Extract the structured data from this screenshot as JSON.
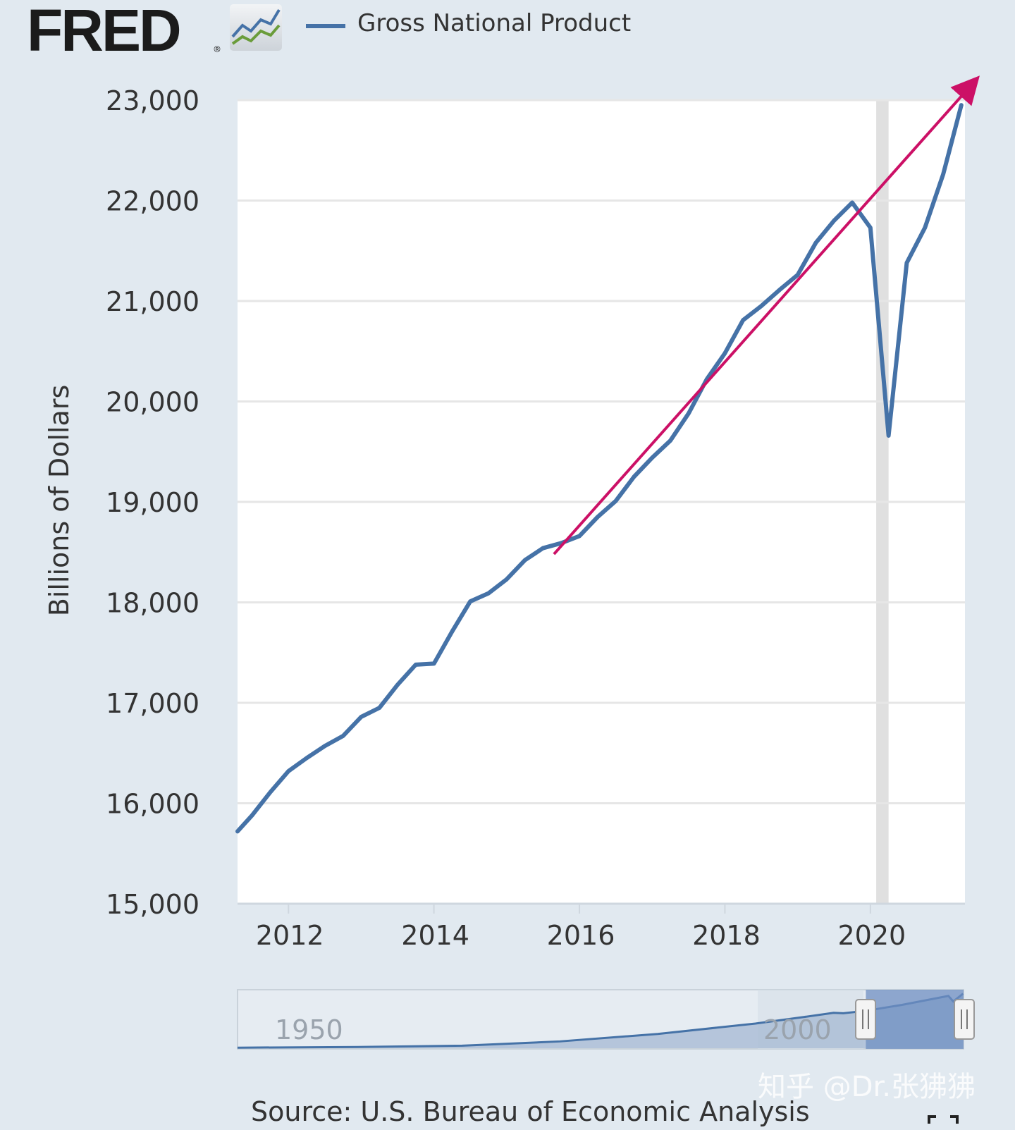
{
  "brand": {
    "name": "FRED",
    "registered": "®"
  },
  "legend": {
    "series_name": "Gross National Product",
    "series_color": "#4572a7"
  },
  "chart_data": {
    "type": "line",
    "title": "Gross National Product",
    "ylabel": "Billions of Dollars",
    "xlabel": "",
    "xlim": [
      2011.3,
      2021.3
    ],
    "ylim": [
      15000,
      23000
    ],
    "y_ticks": [
      15000,
      16000,
      17000,
      18000,
      19000,
      20000,
      21000,
      22000,
      23000
    ],
    "y_tick_labels": [
      "15,000",
      "16,000",
      "17,000",
      "18,000",
      "19,000",
      "20,000",
      "21,000",
      "22,000",
      "23,000"
    ],
    "x_ticks": [
      2012,
      2014,
      2016,
      2018,
      2020
    ],
    "x_tick_labels": [
      "2012",
      "2014",
      "2016",
      "2018",
      "2020"
    ],
    "grid": true,
    "series": [
      {
        "name": "Gross National Product",
        "color": "#4572a7",
        "x": [
          2011.25,
          2011.5,
          2011.75,
          2012.0,
          2012.25,
          2012.5,
          2012.75,
          2013.0,
          2013.25,
          2013.5,
          2013.75,
          2014.0,
          2014.25,
          2014.5,
          2014.75,
          2015.0,
          2015.25,
          2015.5,
          2015.75,
          2016.0,
          2016.25,
          2016.5,
          2016.75,
          2017.0,
          2017.25,
          2017.5,
          2017.75,
          2018.0,
          2018.25,
          2018.5,
          2018.75,
          2019.0,
          2019.25,
          2019.5,
          2019.75,
          2020.0,
          2020.25,
          2020.5,
          2020.75,
          2021.0,
          2021.25
        ],
        "values": [
          15720,
          15880,
          16110,
          16320,
          16450,
          16570,
          16670,
          16860,
          16950,
          17180,
          17380,
          17390,
          17710,
          18010,
          18090,
          18230,
          18420,
          18540,
          18590,
          18660,
          18850,
          19010,
          19250,
          19440,
          19610,
          19880,
          20220,
          20480,
          20810,
          20950,
          21110,
          21260,
          21580,
          21800,
          21980,
          21730,
          19660,
          21380,
          21730,
          22260,
          22950
        ]
      }
    ],
    "recession": {
      "start": 2020.08,
      "end": 2020.25
    },
    "annotation": {
      "type": "arrow",
      "from": [
        2015.65,
        18480
      ],
      "to": [
        2021.4,
        23160
      ],
      "color": "#cc1066"
    }
  },
  "navigator": {
    "labels": [
      "1950",
      "2000"
    ],
    "handle_left_icon": "drag-handle-icon",
    "handle_right_icon": "drag-handle-icon",
    "selected_range": [
      2011.3,
      2021.3
    ]
  },
  "source": "Source: U.S. Bureau of Economic Analysis",
  "watermark": "知乎 @Dr.张狒狒",
  "fullscreen_icon": "fullscreen-icon"
}
